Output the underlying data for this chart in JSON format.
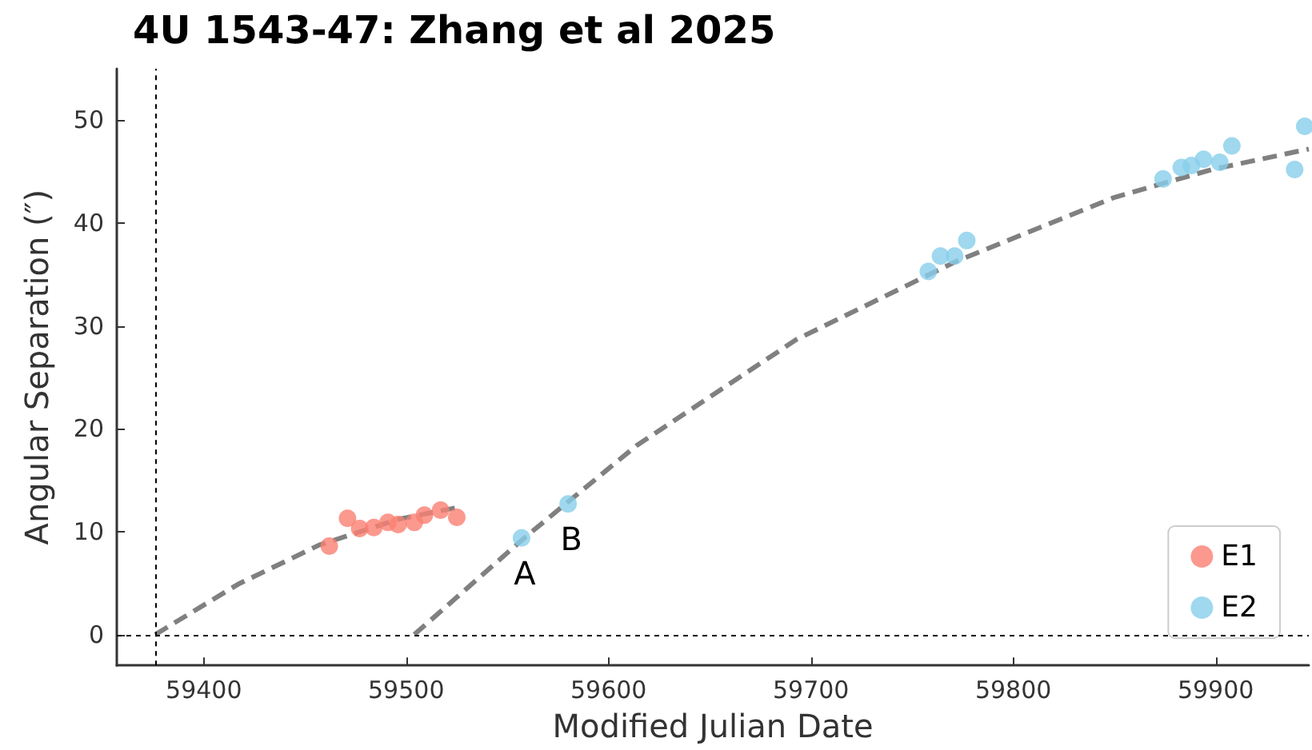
{
  "chart_data": {
    "type": "scatter",
    "title": "4U 1543-47: Zhang et al 2025",
    "xlabel": "Modified Julian Date",
    "ylabel": "Angular Separation (″)",
    "xlim": [
      59357,
      59946
    ],
    "xticks": [
      59400,
      59500,
      59600,
      59700,
      59800,
      59900
    ],
    "ylim": [
      -3,
      55
    ],
    "yticks": [
      0,
      10,
      20,
      30,
      40,
      50
    ],
    "grid": false,
    "legend": "bottom right",
    "marker": "circle",
    "series": [
      {
        "name": "E1",
        "color": "#fa8072",
        "x": [
          59462,
          59471,
          59477,
          59484,
          59491,
          59496,
          59504,
          59509,
          59517,
          59525
        ],
        "values": [
          8.6,
          11.3,
          10.3,
          10.4,
          10.9,
          10.7,
          10.9,
          11.6,
          12.1,
          11.4
        ]
      },
      {
        "name": "E2",
        "color": "#87ceeb",
        "x": [
          59557,
          59580,
          59758,
          59764,
          59771,
          59777,
          59874,
          59883,
          59888,
          59894,
          59902,
          59908,
          59939,
          59944
        ],
        "values": [
          9.4,
          12.7,
          35.3,
          36.8,
          36.8,
          38.3,
          44.3,
          45.4,
          45.6,
          46.2,
          45.9,
          47.5,
          45.2,
          49.4
        ]
      },
      {
        "type": "line",
        "color": "#808080",
        "line_style": "dashed",
        "marker": "none",
        "x": [
          59376,
          59417,
          59457,
          59496,
          59524
        ],
        "values": [
          0,
          4.9,
          8.7,
          11.2,
          12.3
        ]
      },
      {
        "type": "line",
        "color": "#808080",
        "line_style": "dashed",
        "marker": "none",
        "x": [
          59504,
          59559,
          59614,
          59693,
          59772,
          59850,
          59898,
          59946
        ],
        "values": [
          0,
          9.5,
          18.4,
          28.7,
          36.3,
          42.5,
          45.2,
          47.2
        ]
      }
    ],
    "ref_lines": [
      {
        "axis": "x",
        "value": 59376,
        "color": "#000000",
        "line_style": "dotted"
      },
      {
        "axis": "y",
        "value": 0,
        "color": "#000000",
        "line_style": "dotted"
      }
    ],
    "annotations": [
      {
        "text": "A",
        "x": 59557,
        "y": 9.4
      },
      {
        "text": "B",
        "x": 59580,
        "y": 12.7
      }
    ]
  }
}
